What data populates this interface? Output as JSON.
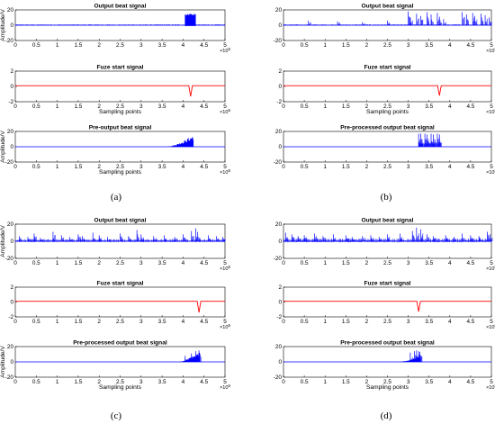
{
  "figure": {
    "panel_labels": [
      "(a)",
      "(b)",
      "(c)",
      "(d)"
    ],
    "colors": {
      "beat": "#0000ff",
      "fuze": "#ff0000",
      "axis": "#000000"
    }
  },
  "chart_data": [
    {
      "panel": "(a)",
      "type": "line",
      "subplots": [
        {
          "title": "Output beat signal",
          "xlabel": "",
          "ylabel": "Amplitude/V",
          "xlim": [
            0,
            5
          ],
          "ylim": [
            -20,
            20
          ],
          "yticks": [
            "20",
            "0",
            "-20"
          ],
          "x_exponent": "10^5",
          "color": "#0000ff",
          "baseline_noise": 1.0,
          "bursts": [
            {
              "x0": 4.05,
              "x1": 4.3,
              "peak": 15,
              "neg": 1,
              "shape": "solid"
            }
          ],
          "spikes": []
        },
        {
          "title": "Fuze start signal",
          "xlabel": "Sampling points",
          "ylabel": "",
          "xlim": [
            0,
            5
          ],
          "ylim": [
            -2,
            2
          ],
          "yticks": [
            "2",
            "0",
            "-2"
          ],
          "x_exponent": "10^5",
          "color": "#ff0000",
          "baseline": 0.1,
          "dip": {
            "x": 4.18,
            "min": -1.3
          }
        },
        {
          "title": "Pre-output beat signal",
          "xlabel": "Sampling points",
          "ylabel": "Amplitude/V",
          "xlim": [
            0,
            5
          ],
          "ylim": [
            -20,
            20
          ],
          "yticks": [
            "20",
            "0",
            "-20"
          ],
          "x_exponent": "10^5",
          "color": "#0000ff",
          "baseline_noise": 0,
          "bursts": [
            {
              "x0": 3.6,
              "x1": 4.25,
              "peak": 16,
              "neg": 0,
              "shape": "ramp"
            }
          ],
          "spikes": []
        }
      ]
    },
    {
      "panel": "(b)",
      "type": "line",
      "subplots": [
        {
          "title": "Output beat signal",
          "xlabel": "",
          "ylabel": "",
          "xlim": [
            0,
            5
          ],
          "ylim": [
            -20,
            20
          ],
          "yticks": [
            "20",
            "0",
            "-20"
          ],
          "x_exponent": "10^5",
          "color": "#0000ff",
          "baseline_noise": 1.0,
          "bursts": [],
          "spikes": [
            [
              0.6,
              6
            ],
            [
              1.3,
              5
            ],
            [
              1.9,
              4
            ],
            [
              2.5,
              6
            ],
            [
              3.0,
              18
            ],
            [
              3.05,
              10
            ],
            [
              3.2,
              15
            ],
            [
              3.3,
              12
            ],
            [
              3.45,
              17
            ],
            [
              3.55,
              14
            ],
            [
              3.7,
              16
            ],
            [
              3.75,
              11
            ],
            [
              3.85,
              8
            ],
            [
              4.3,
              17
            ],
            [
              4.4,
              14
            ],
            [
              4.55,
              16
            ],
            [
              4.6,
              12
            ],
            [
              4.75,
              15
            ],
            [
              4.85,
              13
            ],
            [
              4.95,
              10
            ]
          ]
        },
        {
          "title": "Fuze start signal",
          "xlabel": "Sampling points",
          "ylabel": "",
          "xlim": [
            0,
            5
          ],
          "ylim": [
            -2,
            2
          ],
          "yticks": [
            "2",
            "0",
            "-2"
          ],
          "x_exponent": "10^5",
          "color": "#ff0000",
          "baseline": 0.1,
          "dip": {
            "x": 3.75,
            "min": -1.2
          }
        },
        {
          "title": "Pre-processed output beat signal",
          "xlabel": "",
          "ylabel": "",
          "xlim": [
            0,
            5
          ],
          "ylim": [
            -20,
            20
          ],
          "yticks": [
            "20",
            "0",
            "-20"
          ],
          "x_exponent": "10^5",
          "color": "#0000ff",
          "baseline_noise": 0,
          "bursts": [],
          "spikes": [
            [
              3.25,
              17
            ],
            [
              3.3,
              17
            ],
            [
              3.4,
              17
            ],
            [
              3.45,
              16
            ],
            [
              3.55,
              17
            ],
            [
              3.6,
              16
            ],
            [
              3.7,
              17
            ],
            [
              3.75,
              16
            ]
          ],
          "blocks": [
            {
              "x0": 3.25,
              "x1": 3.78,
              "level": 6
            }
          ]
        }
      ]
    },
    {
      "panel": "(c)",
      "type": "line",
      "subplots": [
        {
          "title": "Output beat signal",
          "xlabel": "",
          "ylabel": "Amplitude/V",
          "xlim": [
            0,
            5
          ],
          "ylim": [
            -20,
            20
          ],
          "yticks": [
            "20",
            "0",
            "-20"
          ],
          "x_exponent": "10^5",
          "color": "#0000ff",
          "baseline_noise": 2.0,
          "bursts": [],
          "spikes": [
            [
              0.1,
              6
            ],
            [
              0.3,
              5
            ],
            [
              0.45,
              9
            ],
            [
              0.6,
              4
            ],
            [
              0.9,
              11
            ],
            [
              1.1,
              7
            ],
            [
              1.3,
              5
            ],
            [
              1.5,
              8
            ],
            [
              1.6,
              6
            ],
            [
              1.85,
              10
            ],
            [
              2.0,
              7
            ],
            [
              2.2,
              5
            ],
            [
              2.5,
              9
            ],
            [
              2.7,
              6
            ],
            [
              2.9,
              13
            ],
            [
              3.0,
              8
            ],
            [
              3.3,
              6
            ],
            [
              3.55,
              7
            ],
            [
              3.8,
              5
            ],
            [
              4.0,
              8
            ],
            [
              4.2,
              12
            ],
            [
              4.3,
              15
            ],
            [
              4.35,
              11
            ],
            [
              4.6,
              7
            ],
            [
              4.8,
              6
            ],
            [
              4.95,
              5
            ]
          ]
        },
        {
          "title": "Fuze start signal",
          "xlabel": "",
          "ylabel": "",
          "xlim": [
            0,
            5
          ],
          "ylim": [
            -2,
            2
          ],
          "yticks": [
            "2",
            "0",
            "-2"
          ],
          "x_exponent": "10^5",
          "color": "#ff0000",
          "baseline": 0.1,
          "dip": {
            "x": 4.38,
            "min": -1.4
          }
        },
        {
          "title": "Pre-processed output beat signal",
          "xlabel": "Sampling points",
          "ylabel": "Amplitude/V",
          "xlim": [
            0,
            5
          ],
          "ylim": [
            -20,
            20
          ],
          "yticks": [
            "20",
            "0",
            "-20"
          ],
          "x_exponent": "10^5",
          "color": "#0000ff",
          "baseline_noise": 0,
          "bursts": [
            {
              "x0": 3.9,
              "x1": 4.4,
              "peak": 15,
              "neg": 0,
              "shape": "ramp"
            }
          ],
          "spikes": [
            [
              4.05,
              8
            ],
            [
              4.2,
              11
            ],
            [
              4.3,
              14
            ],
            [
              4.38,
              15
            ]
          ]
        }
      ]
    },
    {
      "panel": "(d)",
      "type": "line",
      "subplots": [
        {
          "title": "Output beat signal",
          "xlabel": "",
          "ylabel": "",
          "xlim": [
            0,
            5
          ],
          "ylim": [
            -20,
            20
          ],
          "yticks": [
            "20",
            "0",
            "-20"
          ],
          "x_exponent": "10^5",
          "color": "#0000ff",
          "baseline_noise": 2.5,
          "bursts": [],
          "spikes": [
            [
              0.05,
              10
            ],
            [
              0.2,
              8
            ],
            [
              0.35,
              6
            ],
            [
              0.5,
              7
            ],
            [
              0.75,
              9
            ],
            [
              0.95,
              6
            ],
            [
              1.2,
              8
            ],
            [
              1.5,
              7
            ],
            [
              1.65,
              5
            ],
            [
              1.9,
              6
            ],
            [
              2.1,
              7
            ],
            [
              2.3,
              5
            ],
            [
              2.5,
              8
            ],
            [
              2.8,
              9
            ],
            [
              3.1,
              12
            ],
            [
              3.2,
              16
            ],
            [
              3.3,
              14
            ],
            [
              3.45,
              8
            ],
            [
              3.6,
              6
            ],
            [
              3.9,
              7
            ],
            [
              4.1,
              5
            ],
            [
              4.3,
              9
            ],
            [
              4.5,
              7
            ],
            [
              4.7,
              6
            ],
            [
              4.9,
              11
            ],
            [
              4.97,
              8
            ]
          ]
        },
        {
          "title": "Fuze start signal",
          "xlabel": "",
          "ylabel": "",
          "xlim": [
            0,
            5
          ],
          "ylim": [
            -2,
            2
          ],
          "yticks": [
            "2",
            "0",
            "-2"
          ],
          "x_exponent": "10^5",
          "color": "#ff0000",
          "baseline": 0.1,
          "dip": {
            "x": 3.25,
            "min": -1.3
          }
        },
        {
          "title": "Pre-processed output beat signal",
          "xlabel": "Sampling points",
          "ylabel": "",
          "xlim": [
            0,
            5
          ],
          "ylim": [
            -20,
            20
          ],
          "yticks": [
            "20",
            "0",
            "-20"
          ],
          "x_exponent": "10^5",
          "color": "#0000ff",
          "baseline_noise": 0,
          "bursts": [
            {
              "x0": 2.75,
              "x1": 3.3,
              "peak": 8,
              "neg": 0,
              "shape": "ramp"
            }
          ],
          "spikes": [
            [
              3.05,
              12
            ],
            [
              3.15,
              14
            ],
            [
              3.2,
              15
            ],
            [
              3.25,
              14
            ],
            [
              3.28,
              13
            ]
          ]
        }
      ]
    }
  ]
}
